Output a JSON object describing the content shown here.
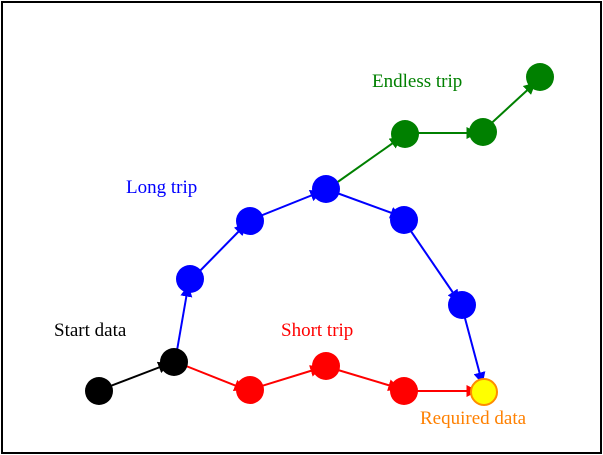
{
  "labels": {
    "start": "Start data",
    "long_trip": "Long trip",
    "endless_trip": "Endless trip",
    "short_trip": "Short trip",
    "required": "Required data"
  },
  "colors": {
    "black": "#000000",
    "long_trip": "#0000ff",
    "endless_trip": "#008000",
    "short_trip": "#ff0000",
    "required_fill": "#ffff00",
    "required_stroke": "#ff8c00",
    "required_text": "#ff8000"
  }
}
